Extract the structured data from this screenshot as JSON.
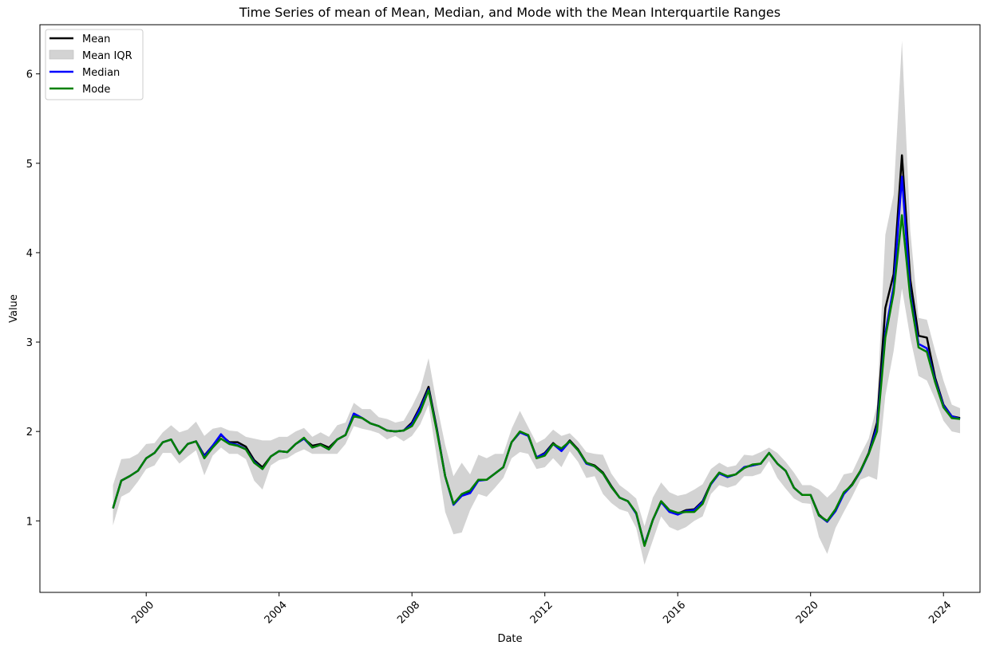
{
  "chart_data": {
    "type": "line",
    "title": "Time Series of mean of Mean, Median, and Mode with the Mean Interquartile Ranges",
    "xlabel": "Date",
    "ylabel": "Value",
    "xlim": [
      1996.8,
      2025.1
    ],
    "ylim": [
      0.2,
      6.55
    ],
    "x_ticks": [
      2000,
      2004,
      2008,
      2012,
      2016,
      2020,
      2024
    ],
    "x_tick_labels": [
      "2000",
      "2004",
      "2008",
      "2012",
      "2016",
      "2020",
      "2024"
    ],
    "y_ticks": [
      1,
      2,
      3,
      4,
      5,
      6
    ],
    "y_tick_labels": [
      "1",
      "2",
      "3",
      "4",
      "5",
      "6"
    ],
    "legend_position": "top-left",
    "legend": [
      {
        "label": "Mean",
        "kind": "line",
        "color": "#000000"
      },
      {
        "label": "Mean IQR",
        "kind": "patch",
        "color": "#d3d3d3"
      },
      {
        "label": "Median",
        "kind": "line",
        "color": "#0000ff"
      },
      {
        "label": "Mode",
        "kind": "line",
        "color": "#008000"
      }
    ],
    "x": [
      1999.0,
      1999.25,
      1999.5,
      1999.75,
      2000.0,
      2000.25,
      2000.5,
      2000.75,
      2001.0,
      2001.25,
      2001.5,
      2001.75,
      2002.0,
      2002.25,
      2002.5,
      2002.75,
      2003.0,
      2003.25,
      2003.5,
      2003.75,
      2004.0,
      2004.25,
      2004.5,
      2004.75,
      2005.0,
      2005.25,
      2005.5,
      2005.75,
      2006.0,
      2006.25,
      2006.5,
      2006.75,
      2007.0,
      2007.25,
      2007.5,
      2007.75,
      2008.0,
      2008.25,
      2008.5,
      2008.75,
      2009.0,
      2009.25,
      2009.5,
      2009.75,
      2010.0,
      2010.25,
      2010.5,
      2010.75,
      2011.0,
      2011.25,
      2011.5,
      2011.75,
      2012.0,
      2012.25,
      2012.5,
      2012.75,
      2013.0,
      2013.25,
      2013.5,
      2013.75,
      2014.0,
      2014.25,
      2014.5,
      2014.75,
      2015.0,
      2015.25,
      2015.5,
      2015.75,
      2016.0,
      2016.25,
      2016.5,
      2016.75,
      2017.0,
      2017.25,
      2017.5,
      2017.75,
      2018.0,
      2018.25,
      2018.5,
      2018.75,
      2019.0,
      2019.25,
      2019.5,
      2019.75,
      2020.0,
      2020.25,
      2020.5,
      2020.75,
      2021.0,
      2021.25,
      2021.5,
      2021.75,
      2022.0,
      2022.25,
      2022.5,
      2022.75,
      2023.0,
      2023.25,
      2023.5,
      2023.75,
      2024.0,
      2024.25,
      2024.5
    ],
    "series": [
      {
        "name": "Mean",
        "color": "#000000",
        "values": [
          1.14,
          1.45,
          1.5,
          1.56,
          1.7,
          1.76,
          1.88,
          1.91,
          1.75,
          1.86,
          1.89,
          1.73,
          1.84,
          1.96,
          1.88,
          1.88,
          1.83,
          1.68,
          1.6,
          1.72,
          1.78,
          1.77,
          1.86,
          1.92,
          1.84,
          1.86,
          1.82,
          1.91,
          1.96,
          2.2,
          2.15,
          2.09,
          2.06,
          2.01,
          2.0,
          2.01,
          2.1,
          2.28,
          2.5,
          2.03,
          1.5,
          1.19,
          1.29,
          1.32,
          1.46,
          1.46,
          1.53,
          1.6,
          1.88,
          1.99,
          1.96,
          1.71,
          1.76,
          1.87,
          1.79,
          1.9,
          1.8,
          1.65,
          1.62,
          1.54,
          1.39,
          1.26,
          1.22,
          1.09,
          0.73,
          1.01,
          1.22,
          1.12,
          1.08,
          1.12,
          1.13,
          1.22,
          1.42,
          1.54,
          1.49,
          1.52,
          1.6,
          1.62,
          1.64,
          1.76,
          1.64,
          1.56,
          1.37,
          1.29,
          1.29,
          1.07,
          0.99,
          1.11,
          1.31,
          1.41,
          1.56,
          1.76,
          2.1,
          3.38,
          3.76,
          5.09,
          3.7,
          3.07,
          3.05,
          2.6,
          2.3,
          2.17,
          2.15
        ]
      },
      {
        "name": "Median",
        "color": "#0000ff",
        "values": [
          1.14,
          1.45,
          1.5,
          1.56,
          1.7,
          1.76,
          1.88,
          1.91,
          1.75,
          1.86,
          1.89,
          1.72,
          1.84,
          1.97,
          1.87,
          1.85,
          1.8,
          1.66,
          1.58,
          1.72,
          1.78,
          1.77,
          1.86,
          1.92,
          1.82,
          1.85,
          1.8,
          1.91,
          1.96,
          2.2,
          2.15,
          2.09,
          2.06,
          2.01,
          2.0,
          2.01,
          2.08,
          2.26,
          2.47,
          2.01,
          1.5,
          1.18,
          1.28,
          1.31,
          1.45,
          1.46,
          1.53,
          1.6,
          1.88,
          1.99,
          1.95,
          1.71,
          1.75,
          1.86,
          1.78,
          1.89,
          1.79,
          1.64,
          1.61,
          1.53,
          1.38,
          1.26,
          1.22,
          1.08,
          0.73,
          1.01,
          1.21,
          1.1,
          1.07,
          1.11,
          1.12,
          1.21,
          1.41,
          1.53,
          1.49,
          1.52,
          1.6,
          1.62,
          1.64,
          1.76,
          1.64,
          1.56,
          1.37,
          1.29,
          1.29,
          1.06,
          0.99,
          1.11,
          1.3,
          1.4,
          1.55,
          1.75,
          2.05,
          3.1,
          3.62,
          4.85,
          3.55,
          2.98,
          2.93,
          2.57,
          2.29,
          2.17,
          2.14
        ]
      },
      {
        "name": "Mode",
        "color": "#008000",
        "values": [
          1.14,
          1.45,
          1.5,
          1.56,
          1.7,
          1.76,
          1.88,
          1.91,
          1.75,
          1.86,
          1.89,
          1.7,
          1.82,
          1.92,
          1.86,
          1.84,
          1.8,
          1.65,
          1.58,
          1.72,
          1.78,
          1.77,
          1.86,
          1.93,
          1.82,
          1.85,
          1.8,
          1.91,
          1.96,
          2.17,
          2.15,
          2.09,
          2.06,
          2.01,
          2.0,
          2.01,
          2.06,
          2.22,
          2.46,
          2.0,
          1.5,
          1.19,
          1.3,
          1.34,
          1.46,
          1.46,
          1.53,
          1.6,
          1.88,
          2.0,
          1.96,
          1.7,
          1.73,
          1.86,
          1.81,
          1.89,
          1.79,
          1.65,
          1.61,
          1.53,
          1.38,
          1.26,
          1.22,
          1.09,
          0.72,
          1.01,
          1.22,
          1.12,
          1.09,
          1.1,
          1.1,
          1.19,
          1.42,
          1.54,
          1.5,
          1.52,
          1.59,
          1.63,
          1.64,
          1.76,
          1.64,
          1.56,
          1.37,
          1.29,
          1.29,
          1.06,
          1.0,
          1.13,
          1.32,
          1.4,
          1.56,
          1.75,
          2.0,
          3.05,
          3.55,
          4.42,
          3.5,
          2.94,
          2.89,
          2.55,
          2.27,
          2.15,
          2.14
        ]
      }
    ],
    "iqr": {
      "name": "Mean IQR",
      "color": "#d3d3d3",
      "lower": [
        0.95,
        1.27,
        1.32,
        1.44,
        1.58,
        1.62,
        1.76,
        1.76,
        1.64,
        1.72,
        1.79,
        1.51,
        1.73,
        1.82,
        1.75,
        1.75,
        1.69,
        1.45,
        1.35,
        1.62,
        1.68,
        1.7,
        1.76,
        1.8,
        1.75,
        1.75,
        1.75,
        1.75,
        1.86,
        2.06,
        2.03,
        2.01,
        1.98,
        1.91,
        1.95,
        1.89,
        1.95,
        2.08,
        2.3,
        1.7,
        1.1,
        0.85,
        0.87,
        1.12,
        1.3,
        1.27,
        1.37,
        1.48,
        1.7,
        1.77,
        1.75,
        1.58,
        1.6,
        1.7,
        1.6,
        1.78,
        1.66,
        1.48,
        1.5,
        1.3,
        1.2,
        1.13,
        1.1,
        0.92,
        0.51,
        0.78,
        1.05,
        0.93,
        0.89,
        0.93,
        1.0,
        1.05,
        1.3,
        1.4,
        1.37,
        1.4,
        1.5,
        1.5,
        1.53,
        1.67,
        1.48,
        1.36,
        1.25,
        1.2,
        1.19,
        0.82,
        0.63,
        0.92,
        1.1,
        1.27,
        1.46,
        1.5,
        1.46,
        2.4,
        2.9,
        3.6,
        3.05,
        2.62,
        2.57,
        2.36,
        2.12,
        2.0,
        1.98
      ],
      "upper": [
        1.4,
        1.69,
        1.7,
        1.75,
        1.86,
        1.87,
        1.99,
        2.07,
        1.99,
        2.02,
        2.11,
        1.95,
        2.03,
        2.05,
        2.01,
        2.0,
        1.94,
        1.92,
        1.9,
        1.9,
        1.94,
        1.94,
        2.0,
        2.04,
        1.94,
        1.99,
        1.94,
        2.07,
        2.1,
        2.32,
        2.25,
        2.25,
        2.16,
        2.14,
        2.1,
        2.12,
        2.28,
        2.47,
        2.82,
        2.3,
        1.85,
        1.5,
        1.65,
        1.52,
        1.74,
        1.7,
        1.75,
        1.75,
        2.03,
        2.23,
        2.05,
        1.87,
        1.92,
        2.02,
        1.95,
        1.98,
        1.89,
        1.77,
        1.75,
        1.74,
        1.53,
        1.4,
        1.33,
        1.25,
        0.94,
        1.26,
        1.43,
        1.32,
        1.28,
        1.3,
        1.35,
        1.41,
        1.58,
        1.65,
        1.6,
        1.62,
        1.74,
        1.73,
        1.77,
        1.82,
        1.76,
        1.66,
        1.54,
        1.4,
        1.4,
        1.35,
        1.26,
        1.35,
        1.52,
        1.54,
        1.74,
        1.92,
        2.3,
        4.2,
        4.65,
        6.37,
        4.25,
        3.27,
        3.25,
        2.9,
        2.57,
        2.3,
        2.26
      ]
    }
  }
}
